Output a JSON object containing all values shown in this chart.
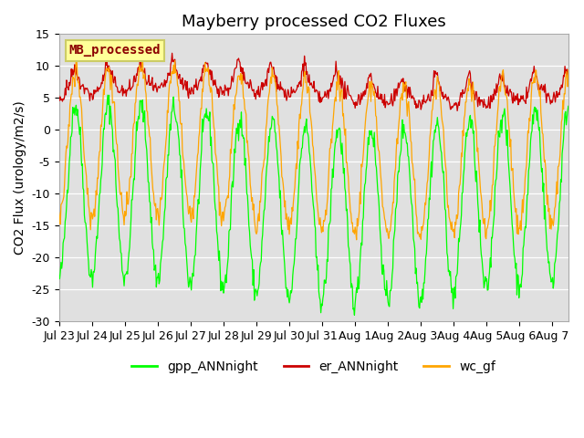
{
  "title": "Mayberry processed CO2 Fluxes",
  "ylabel": "CO2 Flux (urology/m2/s)",
  "ylim": [
    -30,
    15
  ],
  "yticks": [
    -30,
    -25,
    -20,
    -15,
    -10,
    -5,
    0,
    5,
    10,
    15
  ],
  "xlim_days": [
    0,
    15.5
  ],
  "x_tick_labels": [
    "Jul 23",
    "Jul 24",
    "Jul 25",
    "Jul 26",
    "Jul 27",
    "Jul 28",
    "Jul 29",
    "Jul 30",
    "Jul 31",
    "Aug 1",
    "Aug 2",
    "Aug 3",
    "Aug 4",
    "Aug 5",
    "Aug 6",
    "Aug 7"
  ],
  "x_tick_positions": [
    0,
    1,
    2,
    3,
    4,
    5,
    6,
    7,
    8,
    9,
    10,
    11,
    12,
    13,
    14,
    15
  ],
  "legend_entries": [
    "gpp_ANNnight",
    "er_ANNnight",
    "wc_gf"
  ],
  "line_colors": {
    "gpp": "#00FF00",
    "er": "#CC0000",
    "wc": "#FFA500"
  },
  "inset_label": "MB_processed",
  "inset_label_color": "#8B0000",
  "inset_bg_color": "#FFFF99",
  "inset_edge_color": "#CCCC66",
  "background_color": "#E0E0E0",
  "title_fontsize": 13,
  "axis_fontsize": 10,
  "tick_fontsize": 9,
  "line_width": 0.9
}
